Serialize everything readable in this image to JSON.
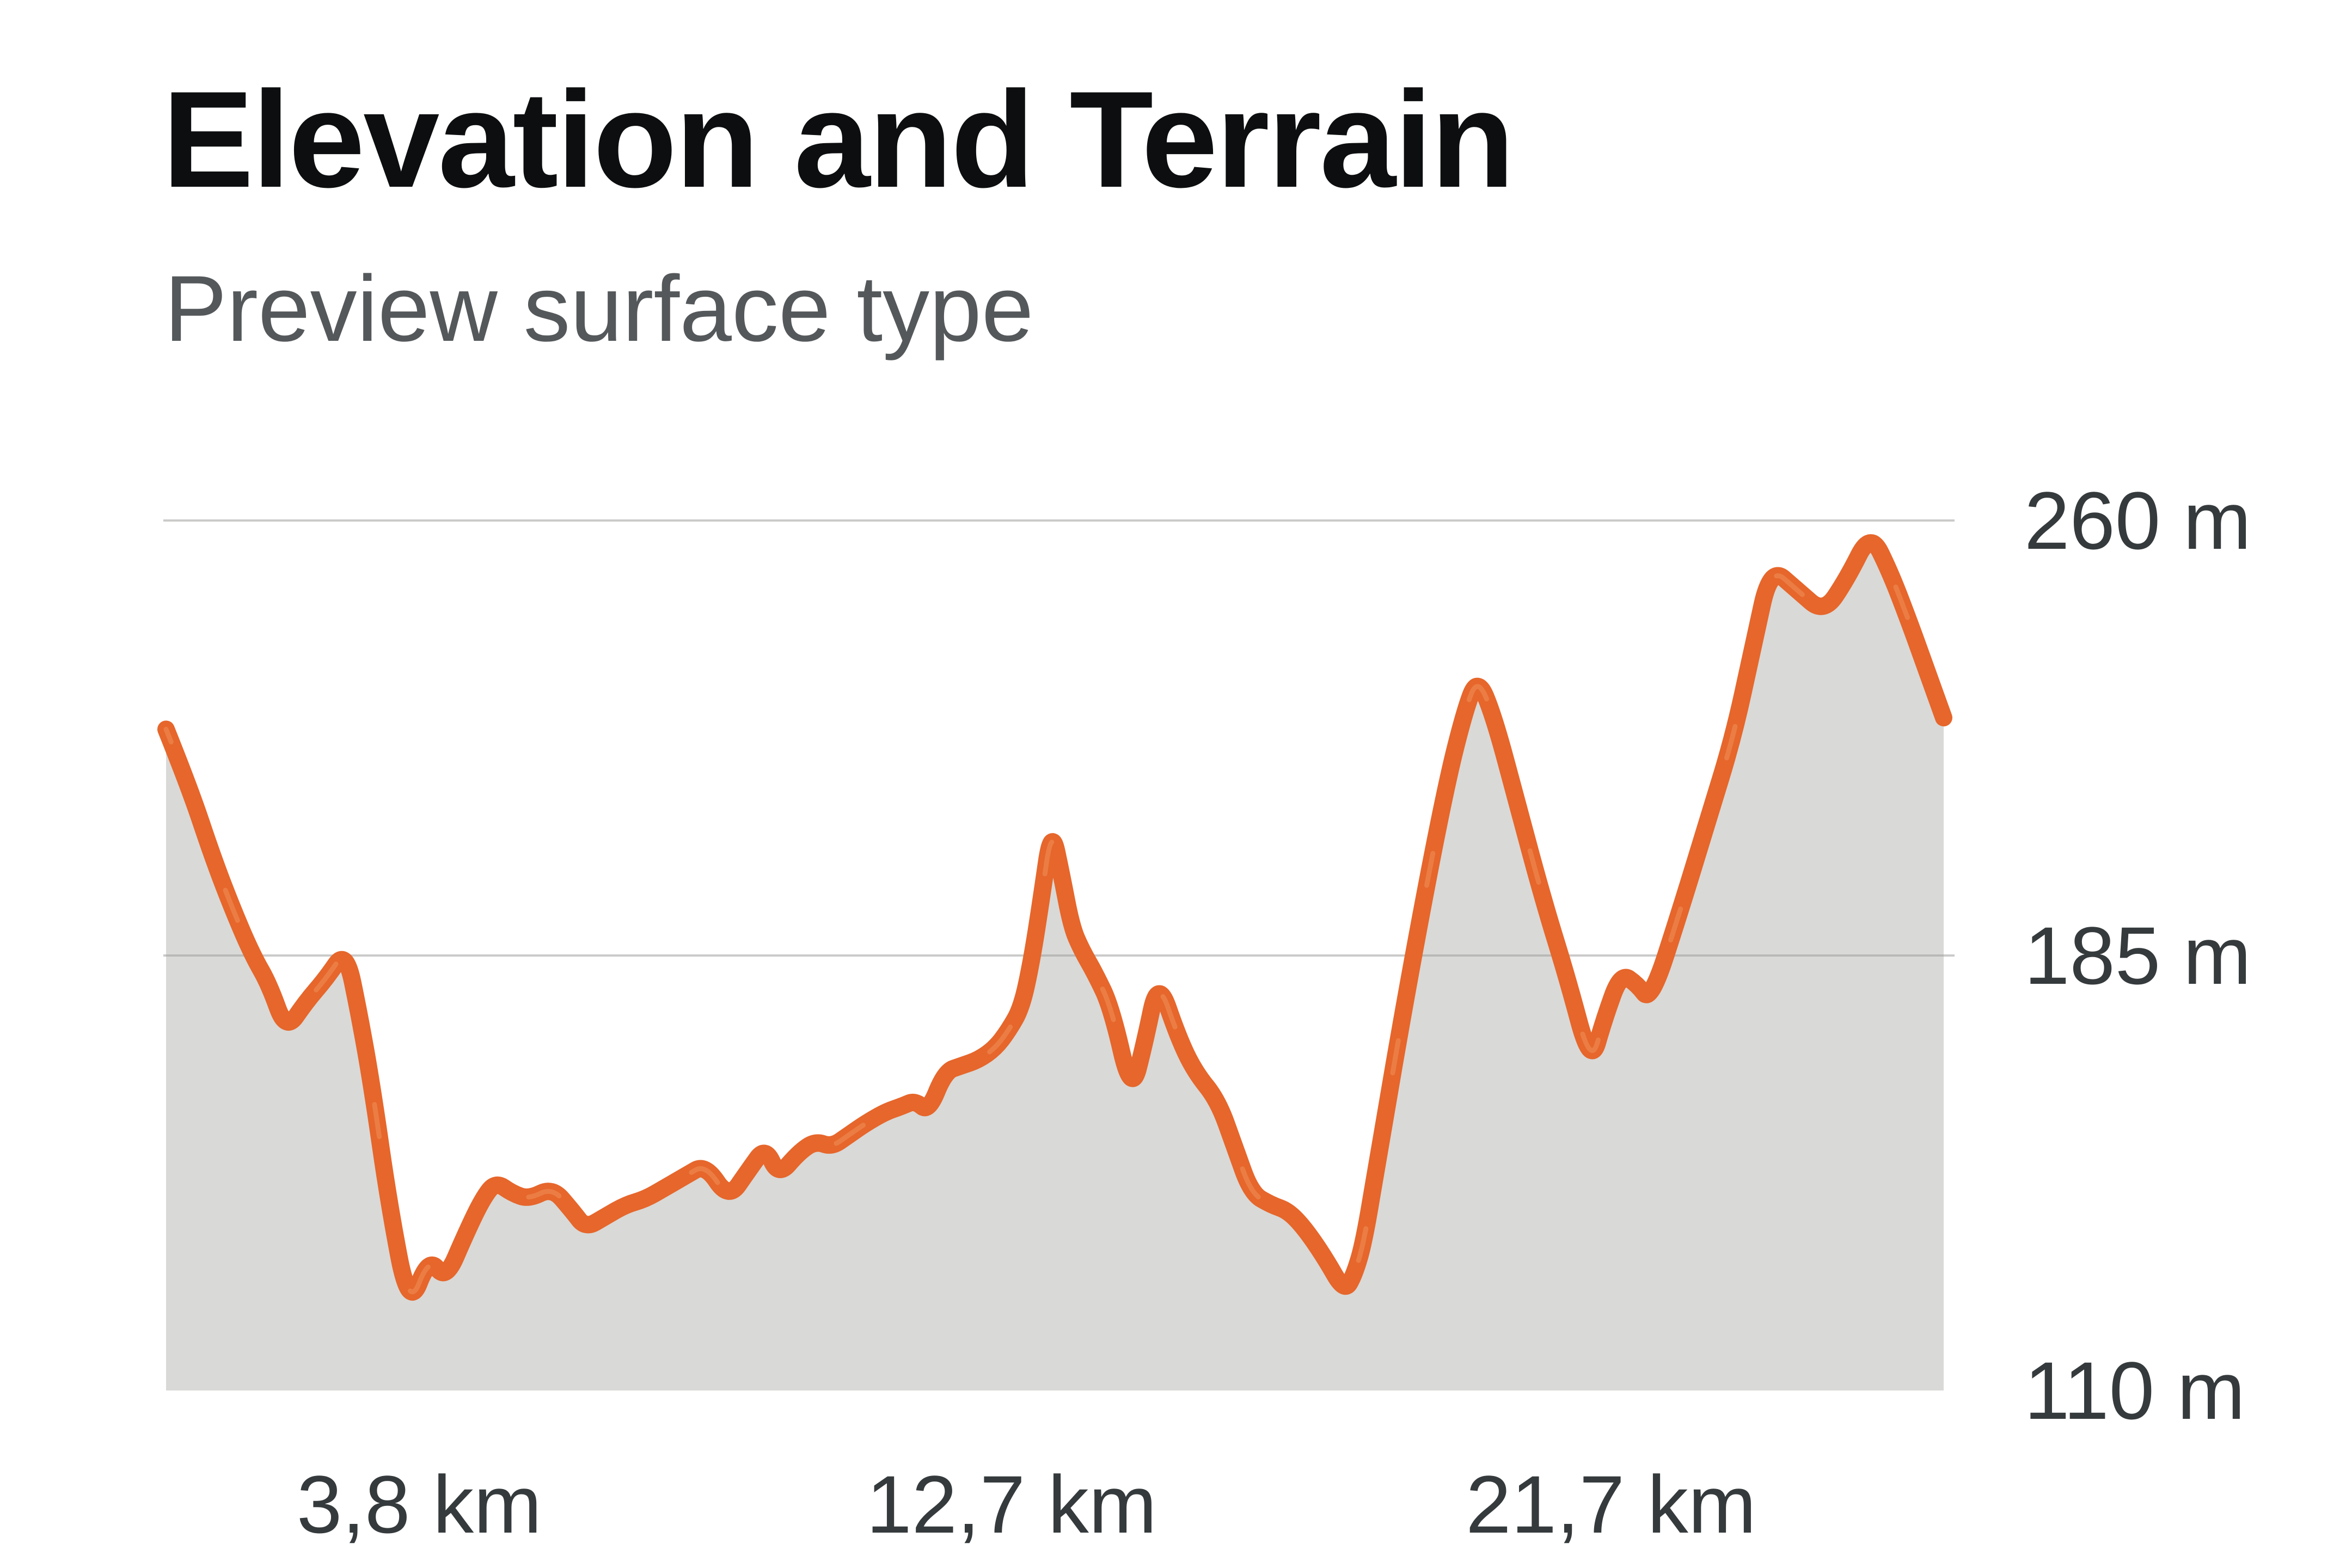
{
  "header": {
    "title": "Elevation and Terrain",
    "subtitle": "Preview surface type"
  },
  "chart_data": {
    "type": "area",
    "title": "Elevation and Terrain",
    "subtitle": "Preview surface type",
    "x_unit": "km",
    "y_unit": "m",
    "x_range_km": [
      0,
      26.7
    ],
    "y_range_m": [
      110,
      260
    ],
    "grid": "horizontal-only",
    "legend": "none",
    "line_color": "#e6662b",
    "line_highlight_color": "#f29a63",
    "fill_color": "#d9d9d7",
    "gridline_color": "#9e9e9c",
    "axis_label_color": "#353a3c",
    "y_ticks": [
      {
        "label": "260 m",
        "value": 260
      },
      {
        "label": "185 m",
        "value": 185
      },
      {
        "label": "110 m",
        "value": 110
      }
    ],
    "x_ticks": [
      {
        "label": "3,8 km",
        "value": 3.8
      },
      {
        "label": "12,7 km",
        "value": 12.7
      },
      {
        "label": "21,7 km",
        "value": 21.7
      }
    ],
    "points": [
      [
        0.0,
        224
      ],
      [
        0.35,
        214
      ],
      [
        0.7,
        202
      ],
      [
        1.0,
        193
      ],
      [
        1.3,
        185
      ],
      [
        1.55,
        180
      ],
      [
        1.8,
        172
      ],
      [
        2.1,
        177
      ],
      [
        2.4,
        181
      ],
      [
        2.7,
        186
      ],
      [
        2.9,
        175
      ],
      [
        3.1,
        162
      ],
      [
        3.35,
        142
      ],
      [
        3.65,
        124
      ],
      [
        3.95,
        133
      ],
      [
        4.2,
        129
      ],
      [
        4.5,
        137
      ],
      [
        4.75,
        143
      ],
      [
        4.95,
        146
      ],
      [
        5.2,
        144
      ],
      [
        5.45,
        143
      ],
      [
        5.8,
        145
      ],
      [
        6.1,
        141
      ],
      [
        6.3,
        138
      ],
      [
        6.6,
        140
      ],
      [
        6.9,
        142
      ],
      [
        7.2,
        143
      ],
      [
        7.5,
        145
      ],
      [
        7.8,
        147
      ],
      [
        8.1,
        149
      ],
      [
        8.45,
        143
      ],
      [
        8.75,
        148
      ],
      [
        9.0,
        152
      ],
      [
        9.2,
        147
      ],
      [
        9.5,
        151
      ],
      [
        9.75,
        153
      ],
      [
        10.0,
        152
      ],
      [
        10.25,
        154
      ],
      [
        10.5,
        156
      ],
      [
        10.8,
        158
      ],
      [
        11.05,
        159
      ],
      [
        11.25,
        160
      ],
      [
        11.45,
        158
      ],
      [
        11.7,
        165
      ],
      [
        11.95,
        166
      ],
      [
        12.2,
        167
      ],
      [
        12.45,
        169
      ],
      [
        12.65,
        172
      ],
      [
        12.85,
        176
      ],
      [
        13.0,
        184
      ],
      [
        13.15,
        195
      ],
      [
        13.3,
        207
      ],
      [
        13.45,
        199
      ],
      [
        13.6,
        190
      ],
      [
        13.75,
        186
      ],
      [
        13.95,
        182
      ],
      [
        14.2,
        176
      ],
      [
        14.5,
        161
      ],
      [
        14.7,
        170
      ],
      [
        14.9,
        181
      ],
      [
        15.2,
        171
      ],
      [
        15.45,
        165
      ],
      [
        15.8,
        160
      ],
      [
        16.05,
        152
      ],
      [
        16.3,
        144
      ],
      [
        16.6,
        142
      ],
      [
        16.85,
        141
      ],
      [
        17.1,
        138
      ],
      [
        17.4,
        133
      ],
      [
        17.7,
        127
      ],
      [
        17.85,
        130
      ],
      [
        18.0,
        136
      ],
      [
        18.2,
        150
      ],
      [
        18.7,
        183
      ],
      [
        19.2,
        213
      ],
      [
        19.5,
        227
      ],
      [
        19.7,
        233
      ],
      [
        19.95,
        226
      ],
      [
        20.3,
        211
      ],
      [
        20.7,
        194
      ],
      [
        21.05,
        181
      ],
      [
        21.4,
        166
      ],
      [
        21.6,
        174
      ],
      [
        21.85,
        182
      ],
      [
        22.1,
        180
      ],
      [
        22.3,
        177
      ],
      [
        22.75,
        193
      ],
      [
        23.15,
        208
      ],
      [
        23.55,
        223
      ],
      [
        23.85,
        239
      ],
      [
        24.1,
        252
      ],
      [
        24.5,
        248
      ],
      [
        24.9,
        244
      ],
      [
        25.25,
        250
      ],
      [
        25.6,
        258
      ],
      [
        25.9,
        251
      ],
      [
        26.2,
        242
      ],
      [
        26.45,
        234
      ],
      [
        26.7,
        226
      ]
    ]
  }
}
